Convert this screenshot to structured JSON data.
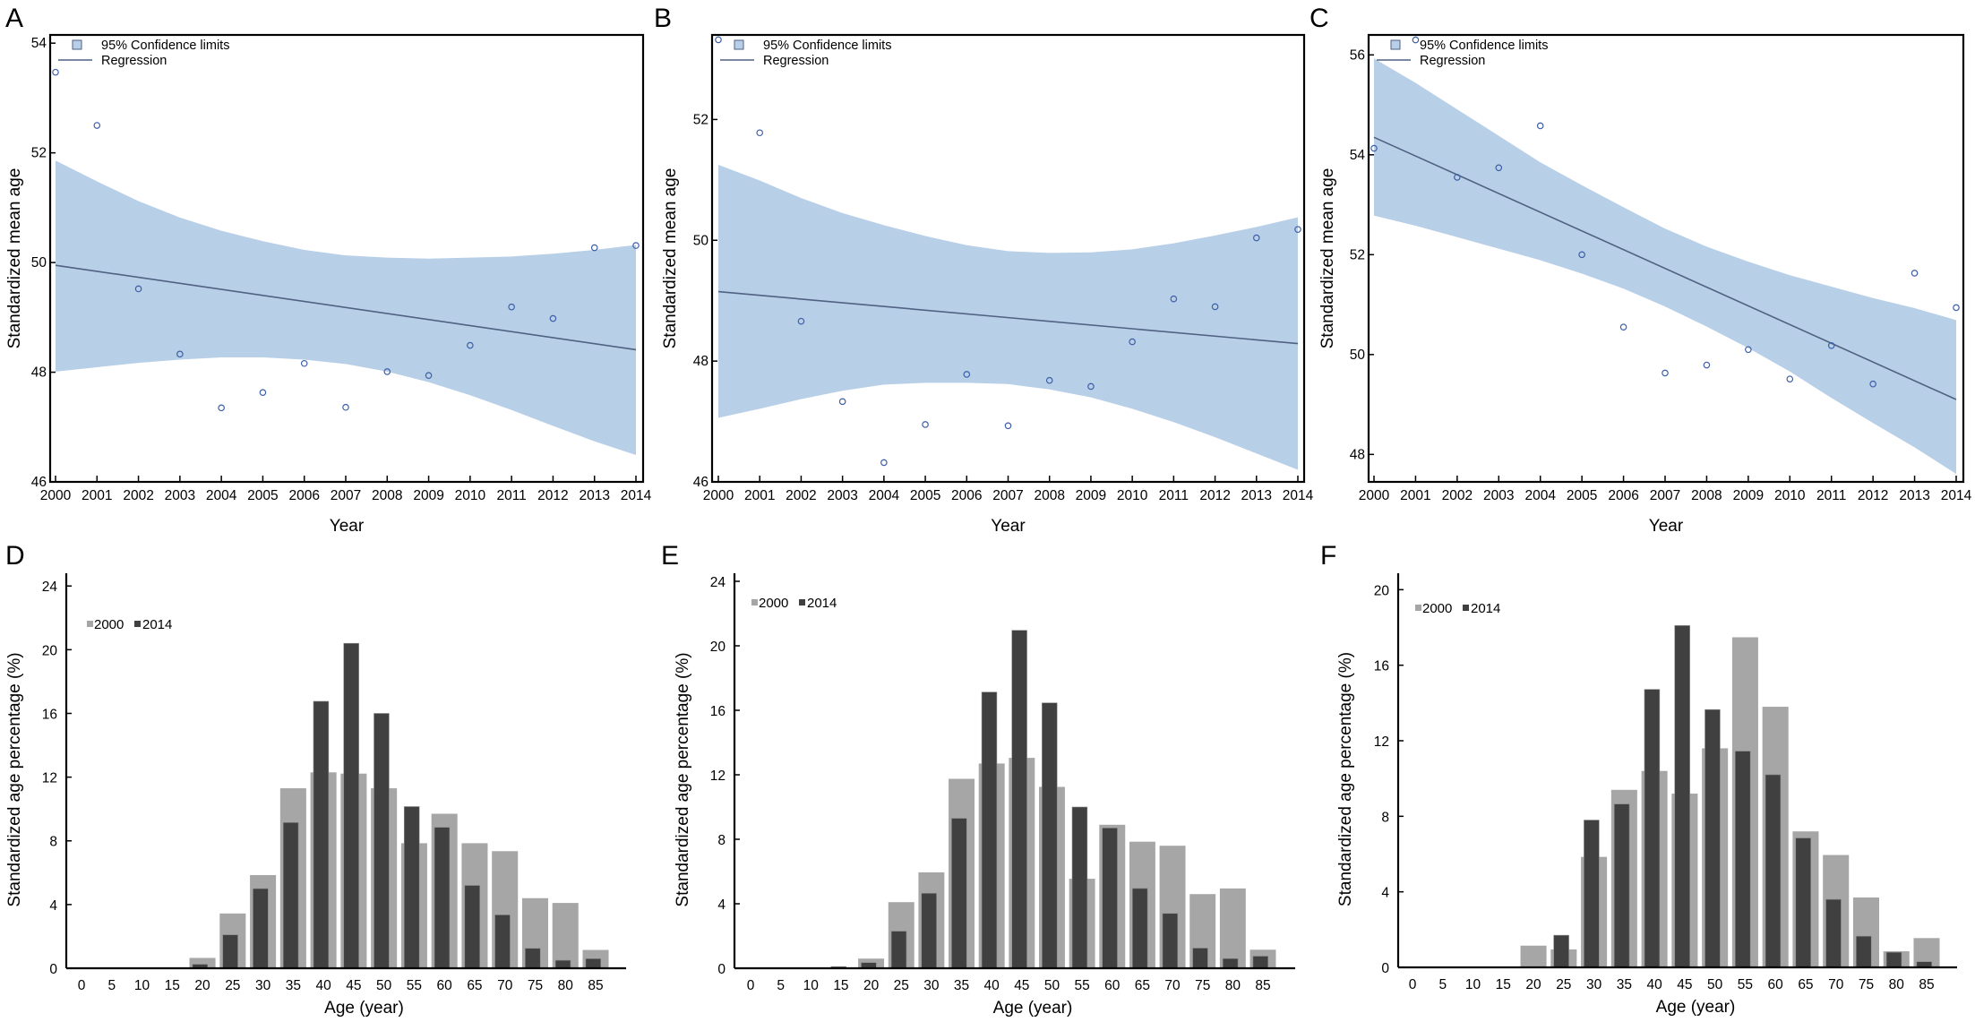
{
  "panel_letters": [
    "A",
    "B",
    "C",
    "D",
    "E",
    "F"
  ],
  "colors": {
    "ci_band": "#b8cfe8",
    "regression_line": "#4f6282",
    "point_stroke": "#3d5fa8",
    "bar_2000": "#a6a6a6",
    "bar_2014": "#404040",
    "axis": "#000000"
  },
  "chart_data": [
    {
      "panel": "A",
      "type": "scatter",
      "title": "",
      "xlabel": "Year",
      "ylabel": "Standardized mean age",
      "xlim": [
        2000,
        2014
      ],
      "ylim": [
        46,
        54.15
      ],
      "yticks": [
        46,
        48,
        50,
        52,
        54
      ],
      "xticks": [
        2000,
        2001,
        2002,
        2003,
        2004,
        2005,
        2006,
        2007,
        2008,
        2009,
        2010,
        2011,
        2012,
        2013,
        2014
      ],
      "legend": {
        "position": "top-left",
        "entries": [
          "95% Confidence limits",
          "Regression"
        ]
      },
      "grid": false,
      "x": [
        2000,
        2001,
        2002,
        2003,
        2004,
        2005,
        2006,
        2007,
        2008,
        2009,
        2010,
        2011,
        2012,
        2013,
        2014
      ],
      "points": [
        53.47,
        52.5,
        49.52,
        48.33,
        47.35,
        47.63,
        48.16,
        47.36,
        48.01,
        47.94,
        48.49,
        49.19,
        48.98,
        50.27,
        50.31
      ],
      "regression": {
        "start": 49.95,
        "end": 48.41
      },
      "ci_upper": [
        51.86,
        51.48,
        51.12,
        50.82,
        50.58,
        50.39,
        50.23,
        50.13,
        50.09,
        50.07,
        50.09,
        50.11,
        50.16,
        50.23,
        50.32
      ],
      "ci_lower": [
        48.01,
        48.09,
        48.17,
        48.23,
        48.27,
        48.27,
        48.23,
        48.15,
        48.01,
        47.82,
        47.58,
        47.31,
        47.02,
        46.74,
        46.49
      ]
    },
    {
      "panel": "B",
      "type": "scatter",
      "title": "",
      "xlabel": "Year",
      "ylabel": "Standardized mean age",
      "xlim": [
        2000,
        2014
      ],
      "ylim": [
        46,
        53.4
      ],
      "yticks": [
        46,
        48,
        50,
        52
      ],
      "xticks": [
        2000,
        2001,
        2002,
        2003,
        2004,
        2005,
        2006,
        2007,
        2008,
        2009,
        2010,
        2011,
        2012,
        2013,
        2014
      ],
      "legend": {
        "position": "top-left",
        "entries": [
          "95% Confidence limits",
          "Regression"
        ]
      },
      "grid": false,
      "x": [
        2000,
        2001,
        2002,
        2003,
        2004,
        2005,
        2006,
        2007,
        2008,
        2009,
        2010,
        2011,
        2012,
        2013,
        2014
      ],
      "points": [
        53.32,
        51.78,
        48.66,
        47.33,
        46.32,
        46.95,
        47.78,
        46.93,
        47.68,
        47.58,
        48.32,
        49.03,
        48.9,
        50.04,
        50.18
      ],
      "regression": {
        "start": 49.15,
        "end": 48.29
      },
      "ci_upper": [
        51.25,
        50.99,
        50.7,
        50.45,
        50.25,
        50.07,
        49.92,
        49.82,
        49.79,
        49.8,
        49.85,
        49.95,
        50.08,
        50.22,
        50.38
      ],
      "ci_lower": [
        47.06,
        47.21,
        47.37,
        47.51,
        47.61,
        47.64,
        47.64,
        47.62,
        47.53,
        47.4,
        47.21,
        46.99,
        46.74,
        46.47,
        46.2
      ]
    },
    {
      "panel": "C",
      "type": "scatter",
      "title": "",
      "xlabel": "Year",
      "ylabel": "Standardized mean age",
      "xlim": [
        2000,
        2014
      ],
      "ylim": [
        47.45,
        56.4
      ],
      "yticks": [
        48,
        50,
        52,
        54,
        56
      ],
      "xticks": [
        2000,
        2001,
        2002,
        2003,
        2004,
        2005,
        2006,
        2007,
        2008,
        2009,
        2010,
        2011,
        2012,
        2013,
        2014
      ],
      "legend": {
        "position": "top-left",
        "entries": [
          "95% Confidence limits",
          "Regression"
        ]
      },
      "grid": false,
      "x": [
        2000,
        2001,
        2002,
        2003,
        2004,
        2005,
        2006,
        2007,
        2008,
        2009,
        2010,
        2011,
        2012,
        2013,
        2014
      ],
      "points": [
        54.13,
        56.3,
        53.55,
        53.74,
        54.58,
        52.0,
        50.55,
        49.63,
        49.79,
        50.1,
        49.51,
        50.18,
        49.41,
        51.63,
        50.94
      ],
      "regression": {
        "start": 54.35,
        "end": 49.1
      },
      "ci_upper": [
        55.93,
        55.44,
        54.91,
        54.38,
        53.85,
        53.39,
        52.95,
        52.52,
        52.16,
        51.86,
        51.59,
        51.36,
        51.13,
        50.93,
        50.69
      ],
      "ci_lower": [
        52.78,
        52.58,
        52.35,
        52.12,
        51.89,
        51.62,
        51.32,
        50.96,
        50.56,
        50.13,
        49.66,
        49.13,
        48.63,
        48.14,
        47.61
      ]
    },
    {
      "panel": "D",
      "type": "bar",
      "title": "",
      "xlabel": "Age (year)",
      "ylabel": "Standardized age percentage (%)",
      "ylim": [
        0,
        24.8
      ],
      "yticks": [
        0,
        4,
        8,
        12,
        16,
        20,
        24
      ],
      "legend": {
        "position": "top-left"
      },
      "grid": false,
      "categories": [
        "0",
        "5",
        "10",
        "15",
        "20",
        "25",
        "30",
        "35",
        "40",
        "45",
        "50",
        "55",
        "60",
        "65",
        "70",
        "75",
        "80",
        "85"
      ],
      "series": [
        {
          "name": "2000",
          "values": [
            0,
            0,
            0,
            0,
            0.65,
            3.44,
            5.85,
            11.3,
            12.3,
            12.22,
            11.3,
            7.85,
            9.7,
            7.85,
            7.35,
            4.4,
            4.1,
            1.15
          ]
        },
        {
          "name": "2014",
          "values": [
            0,
            0,
            0,
            0,
            0.25,
            2.1,
            5.0,
            9.15,
            16.76,
            20.4,
            16.0,
            10.15,
            8.85,
            5.2,
            3.35,
            1.25,
            0.5,
            0.6
          ]
        }
      ]
    },
    {
      "panel": "E",
      "type": "bar",
      "title": "",
      "xlabel": "Age (year)",
      "ylabel": "Standardized age percentage (%)",
      "ylim": [
        0,
        24.5
      ],
      "yticks": [
        0,
        4,
        8,
        12,
        16,
        20,
        24
      ],
      "legend": {
        "position": "top-left"
      },
      "grid": false,
      "categories": [
        "0",
        "5",
        "10",
        "15",
        "20",
        "25",
        "30",
        "35",
        "40",
        "45",
        "50",
        "55",
        "60",
        "65",
        "70",
        "75",
        "80",
        "85"
      ],
      "series": [
        {
          "name": "2000",
          "values": [
            0,
            0,
            0,
            0,
            0.6,
            4.1,
            5.95,
            11.75,
            12.7,
            13.05,
            11.25,
            5.55,
            8.9,
            7.85,
            7.6,
            4.6,
            4.95,
            1.15
          ]
        },
        {
          "name": "2014",
          "values": [
            0,
            0,
            0,
            0.1,
            0.35,
            2.3,
            4.65,
            9.3,
            17.13,
            20.96,
            16.46,
            10.0,
            8.7,
            4.95,
            3.4,
            1.25,
            0.6,
            0.75
          ]
        }
      ]
    },
    {
      "panel": "F",
      "type": "bar",
      "title": "",
      "xlabel": "Age (year)",
      "ylabel": "Standardized age percentage (%)",
      "ylim": [
        0,
        20.87
      ],
      "yticks": [
        0,
        4,
        8,
        12,
        16,
        20
      ],
      "legend": {
        "position": "top-left"
      },
      "grid": false,
      "categories": [
        "0",
        "5",
        "10",
        "15",
        "20",
        "25",
        "30",
        "35",
        "40",
        "45",
        "50",
        "55",
        "60",
        "65",
        "70",
        "75",
        "80",
        "85"
      ],
      "series": [
        {
          "name": "2000",
          "values": [
            0,
            0,
            0,
            0,
            1.15,
            0.95,
            5.85,
            9.4,
            10.4,
            9.2,
            11.6,
            17.48,
            13.8,
            7.2,
            5.95,
            3.7,
            0.85,
            1.55
          ]
        },
        {
          "name": "2014",
          "values": [
            0,
            0,
            0,
            0,
            0,
            1.7,
            7.8,
            8.65,
            14.72,
            18.1,
            13.65,
            11.45,
            10.2,
            6.85,
            3.6,
            1.65,
            0.8,
            0.3
          ]
        }
      ]
    }
  ]
}
